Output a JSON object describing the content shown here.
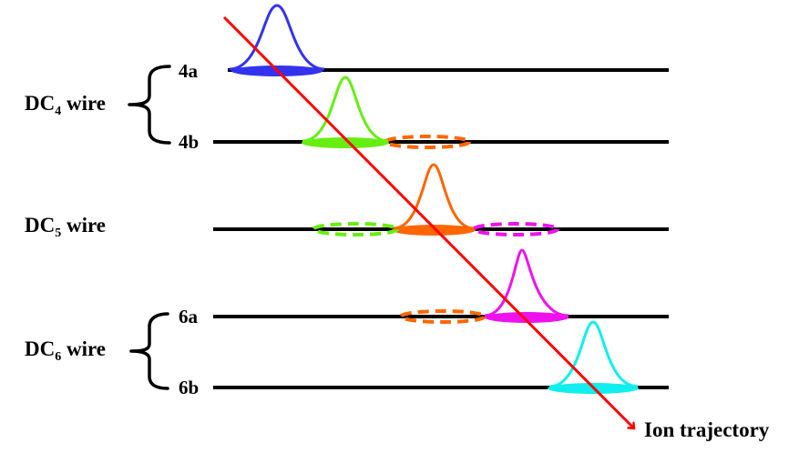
{
  "groups": {
    "dc4": {
      "prefix": "DC",
      "subscript": "4",
      "suffix": " wire"
    },
    "dc5": {
      "prefix": "DC",
      "subscript": "5",
      "suffix": " wire"
    },
    "dc6": {
      "prefix": "DC",
      "subscript": "6",
      "suffix": " wire"
    }
  },
  "wire_labels": {
    "w4a": "4a",
    "w4b": "4b",
    "w6a": "6a",
    "w6b": "6b"
  },
  "trajectory_label": "Ion trajectory",
  "colors": {
    "trajectory": "#ff0000",
    "wire": "#000000",
    "blue": "#3333ee",
    "green": "#66ee11",
    "orange": "#ff6600",
    "magenta": "#ee11ee",
    "cyan": "#11eeee"
  }
}
